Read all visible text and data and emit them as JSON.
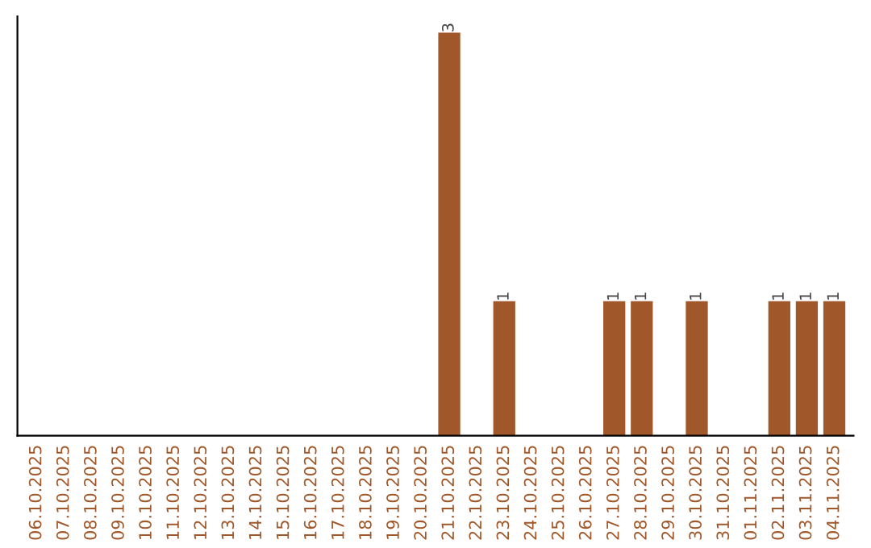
{
  "chart_data": {
    "type": "bar",
    "categories": [
      "06.10.2025",
      "07.10.2025",
      "08.10.2025",
      "09.10.2025",
      "10.10.2025",
      "11.10.2025",
      "12.10.2025",
      "13.10.2025",
      "14.10.2025",
      "15.10.2025",
      "16.10.2025",
      "17.10.2025",
      "18.10.2025",
      "19.10.2025",
      "20.10.2025",
      "21.10.2025",
      "22.10.2025",
      "23.10.2025",
      "24.10.2025",
      "25.10.2025",
      "26.10.2025",
      "27.10.2025",
      "28.10.2025",
      "29.10.2025",
      "30.10.2025",
      "31.10.2025",
      "01.11.2025",
      "02.11.2025",
      "03.11.2025",
      "04.11.2025"
    ],
    "values": [
      null,
      null,
      null,
      null,
      null,
      null,
      null,
      null,
      null,
      null,
      null,
      null,
      null,
      null,
      null,
      3,
      null,
      1,
      null,
      null,
      null,
      1,
      1,
      null,
      1,
      null,
      null,
      1,
      1,
      1
    ],
    "data_labels": true,
    "color": "#a0582a",
    "tick_labels": "x",
    "grid": false,
    "legend": false
  }
}
